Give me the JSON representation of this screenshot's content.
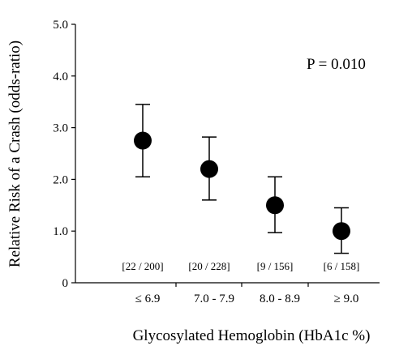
{
  "chart_data": {
    "type": "scatter",
    "title": "",
    "xlabel": "Glycosylated Hemoglobin (HbA1c %)",
    "ylabel": "Relative Risk of a Crash (odds-ratio)",
    "ylim": [
      0,
      5
    ],
    "yticks": [
      "0",
      "1.0",
      "2.0",
      "3.0",
      "4.0",
      "5.0"
    ],
    "categories": [
      "≤ 6.9",
      "7.0 - 7.9",
      "8.0 - 8.9",
      "≥ 9.0"
    ],
    "values": [
      2.75,
      2.2,
      1.5,
      1.0
    ],
    "error_low": [
      2.05,
      1.6,
      0.97,
      0.57
    ],
    "error_high": [
      3.45,
      2.82,
      2.05,
      1.45
    ],
    "counts": [
      "[22 / 200]",
      "[20 / 228]",
      "[9 / 156]",
      "[6 / 158]"
    ],
    "annotation": "P = 0.010",
    "grid": false,
    "marker_color": "#000000"
  }
}
